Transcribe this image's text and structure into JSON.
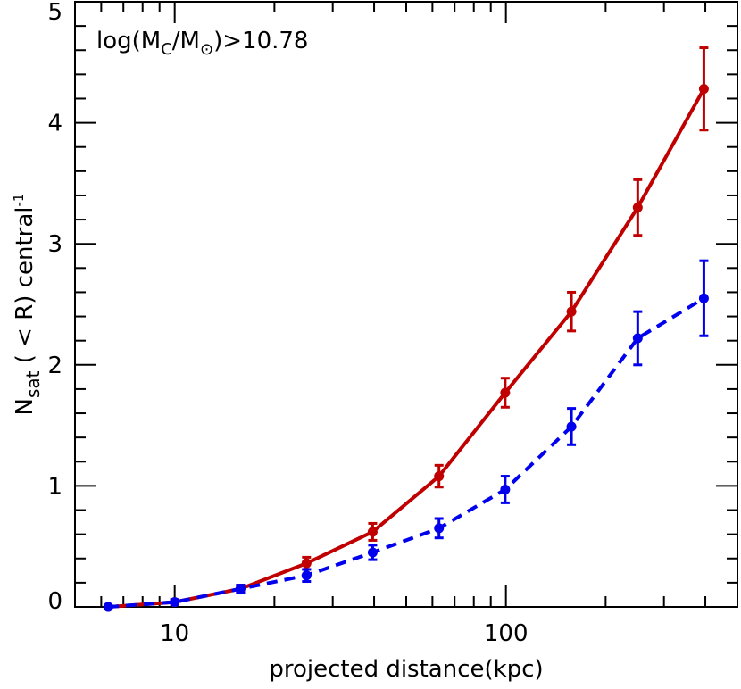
{
  "chart_data": {
    "type": "line",
    "xscale": "log",
    "xlim": [
      5,
      500
    ],
    "ylim": [
      0,
      5
    ],
    "xticks_major": [
      10,
      100
    ],
    "xtick_labels": [
      "10",
      "100"
    ],
    "yticks": [
      0,
      1,
      2,
      3,
      4,
      5
    ],
    "ytick_labels": [
      "0",
      "1",
      "2",
      "3",
      "4",
      "5"
    ],
    "xlabel": "projected distance(kpc)",
    "ylabel": {
      "main": "N",
      "sub": "sat",
      "rest": " ( < R) central",
      "sup": "-1"
    },
    "annotation": {
      "prefix": "log(M",
      "sub1": "C",
      "mid": "/M",
      "sub2": "⊙",
      "suffix": ")>10.78"
    },
    "grid": false,
    "series": [
      {
        "color": "#c00000",
        "linestyle": "solid",
        "x": [
          6.3,
          10,
          15.8,
          25,
          39.6,
          62.8,
          99.5,
          157.7,
          250,
          396
        ],
        "y": [
          0.0,
          0.04,
          0.15,
          0.36,
          0.62,
          1.08,
          1.77,
          2.44,
          3.3,
          4.28
        ],
        "yerr": [
          0.01,
          0.02,
          0.03,
          0.05,
          0.07,
          0.09,
          0.12,
          0.16,
          0.23,
          0.34
        ]
      },
      {
        "color": "#0000ee",
        "linestyle": "dashed",
        "x": [
          6.3,
          10,
          15.8,
          25,
          39.6,
          62.8,
          99.5,
          157.7,
          250,
          396
        ],
        "y": [
          0.0,
          0.04,
          0.15,
          0.26,
          0.45,
          0.65,
          0.97,
          1.49,
          2.22,
          2.55
        ],
        "yerr": [
          0.01,
          0.02,
          0.03,
          0.05,
          0.06,
          0.08,
          0.11,
          0.15,
          0.22,
          0.31
        ]
      }
    ]
  }
}
